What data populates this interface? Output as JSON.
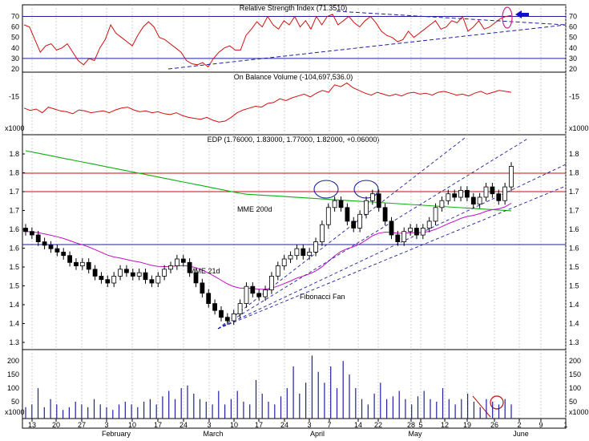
{
  "chart_data": {
    "type": "candlestick",
    "x_tick_labels": [
      "13",
      "20",
      "27",
      "3",
      "10",
      "17",
      "24",
      "3",
      "10",
      "17",
      "24",
      "3",
      "7",
      "14",
      "22",
      "28",
      "5",
      "12",
      "19",
      "26",
      "2",
      "9",
      "1"
    ],
    "month_labels": [
      "February",
      "March",
      "April",
      "May",
      "June"
    ],
    "panels": {
      "rsi": {
        "title": "Relative Strength Index (71.3510)",
        "yticks": [
          "70",
          "60",
          "50",
          "40",
          "30",
          "20"
        ],
        "levels": [
          70,
          30
        ],
        "ylim": [
          20,
          75
        ],
        "values": [
          62,
          60,
          48,
          36,
          42,
          44,
          38,
          40,
          44,
          36,
          28,
          24,
          30,
          28,
          40,
          48,
          62,
          54,
          50,
          46,
          42,
          52,
          60,
          65,
          60,
          50,
          48,
          44,
          40,
          36,
          28,
          25,
          24,
          26,
          22,
          30,
          36,
          40,
          42,
          38,
          38,
          52,
          58,
          65,
          60,
          70,
          62,
          58,
          66,
          62,
          70,
          60,
          66,
          58,
          70,
          62,
          70,
          72,
          62,
          66,
          70,
          64,
          60,
          66,
          70,
          64,
          56,
          52,
          50,
          46,
          48,
          56,
          50,
          54,
          58,
          62,
          66,
          58,
          60,
          66,
          64,
          70,
          56,
          60,
          66,
          58,
          60,
          64,
          68,
          70,
          71
        ]
      },
      "obv": {
        "title": "On Balance Volume (-104,697,536.0)",
        "yticks": [
          "-15"
        ],
        "marker": "x1000",
        "values": [
          -40,
          -45,
          -42,
          -50,
          -38,
          -42,
          -46,
          -48,
          -52,
          -44,
          -46,
          -50,
          -48,
          -46,
          -50,
          -44,
          -40,
          -38,
          -44,
          -48,
          -46,
          -50,
          -48,
          -52,
          -54,
          -50,
          -56,
          -60,
          -62,
          -64,
          -60,
          -66,
          -70,
          -68,
          -60,
          -50,
          -44,
          -40,
          -36,
          -38,
          -30,
          -28,
          -20,
          -24,
          -18,
          -14,
          -10,
          -16,
          -8,
          -2,
          -6,
          10,
          6,
          14,
          4,
          -2,
          -8,
          -12,
          -6,
          -10,
          -14,
          -10,
          -14,
          -8,
          -6,
          -10,
          -8,
          -12,
          -6,
          -4,
          -8,
          -12,
          -10,
          -14,
          -8,
          -4,
          -10,
          -6,
          -2,
          -4,
          -6
        ]
      },
      "price": {
        "title": "EDP (1.76000, 1.83000, 1.77000, 1.82000, +0.06000)",
        "yticks": [
          "1.8",
          "1.8",
          "1.7",
          "1.7",
          "1.6",
          "1.6",
          "1.5",
          "1.5",
          "1.4",
          "1.4",
          "1.3"
        ],
        "ylim": [
          1.28,
          1.87
        ],
        "horizontal_lines": [
          1.8,
          1.75,
          1.6
        ],
        "annotations": [
          "MME 200d",
          "MME 21d",
          "Fibonacci Fan"
        ],
        "closes": [
          1.63,
          1.62,
          1.6,
          1.59,
          1.58,
          1.57,
          1.56,
          1.54,
          1.53,
          1.54,
          1.52,
          1.5,
          1.49,
          1.48,
          1.5,
          1.52,
          1.51,
          1.5,
          1.51,
          1.49,
          1.48,
          1.5,
          1.52,
          1.53,
          1.55,
          1.54,
          1.51,
          1.48,
          1.45,
          1.42,
          1.4,
          1.38,
          1.37,
          1.39,
          1.42,
          1.47,
          1.45,
          1.44,
          1.46,
          1.5,
          1.53,
          1.55,
          1.56,
          1.58,
          1.56,
          1.57,
          1.6,
          1.65,
          1.7,
          1.72,
          1.7,
          1.66,
          1.64,
          1.68,
          1.72,
          1.74,
          1.7,
          1.66,
          1.62,
          1.6,
          1.63,
          1.64,
          1.62,
          1.64,
          1.66,
          1.7,
          1.72,
          1.74,
          1.73,
          1.75,
          1.73,
          1.71,
          1.73,
          1.76,
          1.74,
          1.72,
          1.76,
          1.82
        ]
      },
      "volume": {
        "yticks": [
          "200",
          "150",
          "100",
          "50"
        ],
        "marker": "x1000",
        "values": [
          30,
          40,
          100,
          30,
          60,
          40,
          20,
          30,
          50,
          40,
          30,
          60,
          40,
          30,
          20,
          40,
          50,
          40,
          30,
          50,
          60,
          40,
          70,
          90,
          60,
          100,
          110,
          80,
          60,
          50,
          40,
          90,
          40,
          60,
          90,
          50,
          40,
          130,
          80,
          50,
          40,
          70,
          100,
          180,
          80,
          120,
          220,
          160,
          120,
          180,
          100,
          200,
          150,
          100,
          60,
          40,
          80,
          120,
          60,
          70,
          90,
          60,
          40,
          70,
          90,
          60,
          50,
          100,
          60,
          40,
          60,
          80,
          50,
          30,
          60,
          50,
          40,
          60,
          40
        ]
      }
    }
  }
}
